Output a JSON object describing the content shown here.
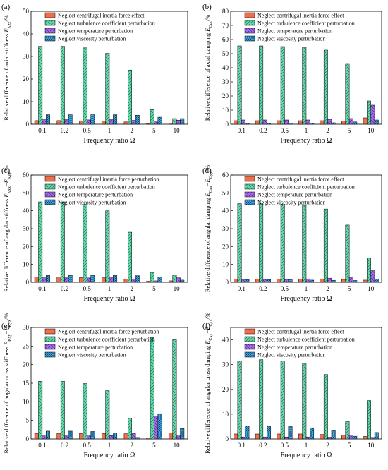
{
  "chart_data": [
    {
      "panel_label": "(a)",
      "type": "bar",
      "categories": [
        "0.1",
        "0.2",
        "0.5",
        "1",
        "2",
        "5",
        "10"
      ],
      "ylabel_prefix": "Relative difference of axial stiffness ",
      "ylabel_symbol": "E",
      "ylabel_sub": "Kzz",
      "ylabel_suffix": "/%",
      "xlabel": "Frequency ratio Ω",
      "ylim": [
        0,
        50
      ],
      "yticks": [
        0,
        10,
        20,
        30,
        40,
        50
      ],
      "legend_position": "top-right",
      "series": [
        {
          "name": "Neglect centrifugal inertia force effect",
          "values": [
            1.6,
            1.6,
            1.5,
            1.4,
            1.0,
            0.3,
            0.5
          ]
        },
        {
          "name": "Neglect turbulence coefficient perturbation",
          "values": [
            34.5,
            34.5,
            33.8,
            31.4,
            24.0,
            6.5,
            2.5
          ]
        },
        {
          "name": "Neglect temperature perturbation",
          "values": [
            2.0,
            2.0,
            1.9,
            2.0,
            1.7,
            1.0,
            1.8
          ]
        },
        {
          "name": "Neglect viscosity perturbation",
          "values": [
            4.2,
            4.2,
            4.2,
            4.2,
            4.0,
            3.1,
            2.5
          ]
        }
      ]
    },
    {
      "panel_label": "(b)",
      "type": "bar",
      "categories": [
        "0.1",
        "0.2",
        "0.5",
        "1",
        "2",
        "5",
        "10"
      ],
      "ylabel_prefix": "Relative difference of axial damping ",
      "ylabel_symbol": "E",
      "ylabel_sub": "Czz",
      "ylabel_suffix": "/%",
      "xlabel": "Frequency ratio Ω",
      "ylim": [
        0,
        80
      ],
      "yticks": [
        0,
        10,
        20,
        30,
        40,
        50,
        60,
        70,
        80
      ],
      "legend_position": "top-right",
      "series": [
        {
          "name": "Neglect centrifugal inertia force effect",
          "values": [
            2.5,
            2.5,
            2.5,
            2.5,
            2.5,
            2.2,
            4.5
          ]
        },
        {
          "name": "Neglect turbulence coefficient perturbation",
          "values": [
            55.5,
            55.5,
            55.0,
            54.5,
            52.5,
            43.0,
            16.5
          ]
        },
        {
          "name": "Neglect temperature perturbation",
          "values": [
            3.0,
            3.0,
            3.0,
            3.0,
            3.5,
            4.0,
            13.5
          ]
        },
        {
          "name": "Neglect viscosity perturbation",
          "values": [
            0.8,
            0.8,
            0.8,
            0.8,
            1.0,
            1.6,
            3.0
          ]
        }
      ]
    },
    {
      "panel_label": "(c)",
      "type": "bar",
      "categories": [
        "0.1",
        "0.2",
        "0.5",
        "1",
        "2",
        "5",
        "10"
      ],
      "ylabel_prefix": "Relative difference of angular stiffness ",
      "ylabel_symbol": "E",
      "ylabel_sub": "Kxx",
      "ylabel_suffix": "=",
      "ylabel_symbol2": "E",
      "ylabel_sub2": "Kyy",
      "ylabel_suffix2": "/%",
      "xlabel": "Frequency ratio Ω",
      "ylim": [
        0,
        60
      ],
      "yticks": [
        0,
        10,
        20,
        30,
        40,
        50,
        60
      ],
      "legend_position": "top-right",
      "series": [
        {
          "name": "Neglect centrifugal inertia force perturbation",
          "values": [
            3.0,
            2.9,
            2.6,
            2.5,
            1.8,
            0.6,
            0.8
          ]
        },
        {
          "name": "Neglect turbulence coefficient perturbation",
          "values": [
            45.0,
            45.0,
            43.5,
            40.0,
            28.0,
            5.5,
            4.0
          ]
        },
        {
          "name": "Neglect temperature perturbation",
          "values": [
            2.5,
            2.5,
            2.4,
            2.5,
            1.9,
            0.8,
            2.5
          ]
        },
        {
          "name": "Neglect viscosity perturbation",
          "values": [
            3.9,
            3.9,
            3.9,
            3.9,
            3.7,
            3.0,
            1.2
          ]
        }
      ]
    },
    {
      "panel_label": "(d)",
      "type": "bar",
      "categories": [
        "0.1",
        "0.2",
        "0.5",
        "1",
        "2",
        "5",
        "10"
      ],
      "ylabel_prefix": "Relative difference of angular damping ",
      "ylabel_symbol": "E",
      "ylabel_sub": "Cxx",
      "ylabel_suffix": "=",
      "ylabel_symbol2": "E",
      "ylabel_sub2": "Cyy",
      "ylabel_suffix2": "/%",
      "xlabel": "Frequency ratio Ω",
      "ylim": [
        0,
        60
      ],
      "yticks": [
        0,
        10,
        20,
        30,
        40,
        50,
        60
      ],
      "legend_position": "top-right",
      "series": [
        {
          "name": "Neglect centrifugal inertia force effect",
          "values": [
            1.8,
            1.8,
            1.8,
            1.8,
            1.8,
            1.6,
            1.2
          ]
        },
        {
          "name": "Neglect turbulence coefficient perturbation",
          "values": [
            44.0,
            44.0,
            43.5,
            43.0,
            41.0,
            32.0,
            13.5
          ]
        },
        {
          "name": "Neglect temperature perturbation",
          "values": [
            1.6,
            1.6,
            1.6,
            1.9,
            2.3,
            2.8,
            6.5
          ]
        },
        {
          "name": "Neglect viscosity perturbation",
          "values": [
            1.5,
            1.5,
            1.4,
            1.2,
            1.1,
            1.0,
            1.8
          ]
        }
      ]
    },
    {
      "panel_label": "(e)",
      "type": "bar",
      "categories": [
        "0.1",
        "0.2",
        "0.5",
        "1",
        "2",
        "5",
        "10"
      ],
      "ylabel_prefix": "Relative difference of  angular cross stiffness ",
      "ylabel_symbol": "E",
      "ylabel_sub": "Kxy",
      "ylabel_suffix": "=",
      "ylabel_symbol2": "E",
      "ylabel_sub2": "Kyx",
      "ylabel_suffix2": "/%",
      "xlabel": "Frequency ratio Ω",
      "ylim": [
        0,
        30
      ],
      "yticks": [
        0,
        5,
        10,
        15,
        20,
        25,
        30
      ],
      "legend_position": "top-right",
      "series": [
        {
          "name": "Neglect centrifugal inertia force perturbation",
          "values": [
            1.5,
            1.5,
            1.5,
            1.5,
            1.4,
            0.3,
            1.6
          ]
        },
        {
          "name": "Neglect turbulence coefficient perturbation",
          "values": [
            15.5,
            15.5,
            14.9,
            13.0,
            5.6,
            27.3,
            26.7
          ]
        },
        {
          "name": "Neglect temperature perturbation",
          "values": [
            0.8,
            0.8,
            0.8,
            0.9,
            1.5,
            6.2,
            0.8
          ]
        },
        {
          "name": "Neglect viscosity perturbation",
          "values": [
            2.1,
            2.1,
            2.0,
            1.6,
            0.4,
            6.8,
            2.8
          ]
        }
      ]
    },
    {
      "panel_label": "(f)",
      "type": "bar",
      "categories": [
        "0.1",
        "0.2",
        "0.5",
        "1",
        "2",
        "5",
        "10"
      ],
      "ylabel_prefix": "Relative difference of  angular cross damping ",
      "ylabel_symbol": "E",
      "ylabel_sub": "Cxy",
      "ylabel_suffix": "=",
      "ylabel_symbol2": "E",
      "ylabel_sub2": "Cyx",
      "ylabel_suffix2": "/%",
      "xlabel": "Frequency ratio Ω",
      "ylim": [
        0,
        45
      ],
      "yticks": [
        0,
        10,
        20,
        30,
        40
      ],
      "legend_position": "top-right",
      "series": [
        {
          "name": "Neglect centrifugal inertia force effect",
          "values": [
            2.0,
            2.0,
            2.0,
            2.0,
            1.8,
            1.6,
            1.0
          ]
        },
        {
          "name": "Neglect turbulence coefficient perturbation",
          "values": [
            31.5,
            32.0,
            31.5,
            30.5,
            26.0,
            7.0,
            15.5
          ]
        },
        {
          "name": "Neglect temperature perturbation",
          "values": [
            0.8,
            0.8,
            0.8,
            0.8,
            0.7,
            1.6,
            0.6
          ]
        },
        {
          "name": "Neglect viscosity perturbation",
          "values": [
            5.2,
            5.2,
            5.0,
            4.5,
            3.4,
            1.1,
            2.6
          ]
        }
      ]
    }
  ],
  "colors": {
    "series": [
      "#f26d4a",
      "#64dbad",
      "#a86bf0",
      "#3fa4e4"
    ],
    "hatch": [
      "none",
      "diag-right",
      "diag-left",
      "cross"
    ]
  }
}
